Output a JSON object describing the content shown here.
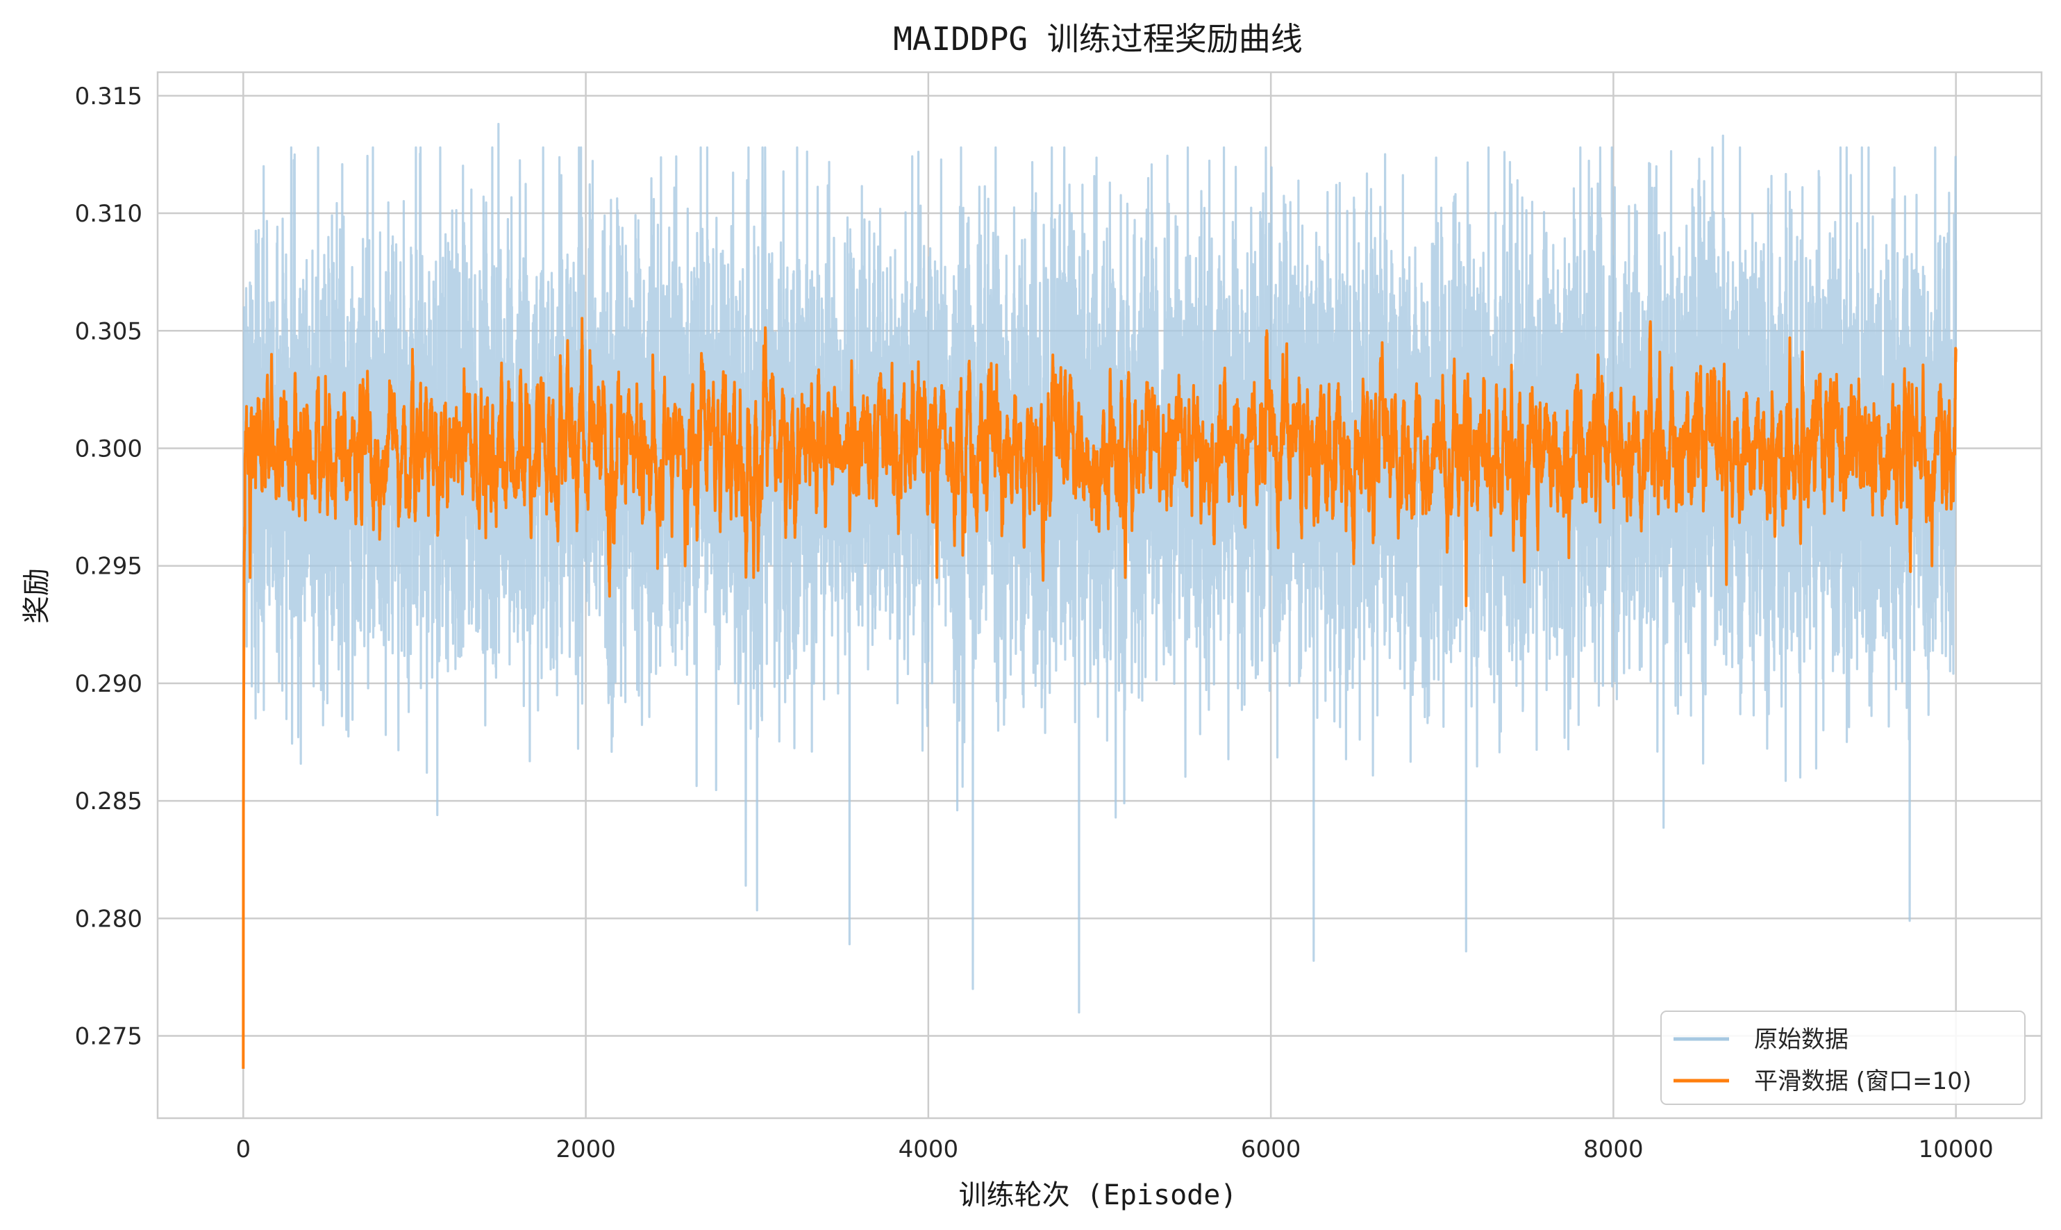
{
  "chart_data": {
    "type": "line",
    "title": "MAIDDPG 训练过程奖励曲线",
    "xlabel": "训练轮次 (Episode)",
    "ylabel": "奖励",
    "xlim": [
      -500,
      10500
    ],
    "ylim": [
      0.2715,
      0.316
    ],
    "x_ticks": [
      0,
      2000,
      4000,
      6000,
      8000,
      10000
    ],
    "x_tick_labels": [
      "0",
      "2000",
      "4000",
      "6000",
      "8000",
      "10000"
    ],
    "y_ticks": [
      0.275,
      0.28,
      0.285,
      0.29,
      0.295,
      0.3,
      0.305,
      0.31,
      0.315
    ],
    "y_tick_labels": [
      "0.275",
      "0.280",
      "0.285",
      "0.290",
      "0.295",
      "0.300",
      "0.305",
      "0.310",
      "0.315"
    ],
    "grid": true,
    "legend_position": "bottom-right",
    "series": [
      {
        "name": "原始数据",
        "color": "#a6c8e2",
        "x_range": [
          0,
          10000
        ],
        "summary": {
          "mean": 0.3,
          "min": 0.2736,
          "max": 0.3138,
          "typical_low": 0.29,
          "typical_high": 0.309
        },
        "notable_points": [
          {
            "x": 0,
            "y": 0.2736
          },
          {
            "x": 5,
            "y": 0.306
          },
          {
            "x": 300,
            "y": 0.3125
          },
          {
            "x": 1490,
            "y": 0.3138
          },
          {
            "x": 3540,
            "y": 0.2789
          },
          {
            "x": 4260,
            "y": 0.277
          },
          {
            "x": 4880,
            "y": 0.276
          },
          {
            "x": 6250,
            "y": 0.2782
          },
          {
            "x": 7140,
            "y": 0.2786
          },
          {
            "x": 8640,
            "y": 0.3133
          },
          {
            "x": 9730,
            "y": 0.2799
          },
          {
            "x": 10000,
            "y": 0.308
          }
        ]
      },
      {
        "name": "平滑数据 (窗口=10)",
        "color": "#ff7f0e",
        "x_range": [
          0,
          10000
        ],
        "summary": {
          "mean": 0.3,
          "min": 0.2933,
          "max": 0.3047,
          "typical_low": 0.2975,
          "typical_high": 0.3025
        },
        "notable_points": [
          {
            "x": 40,
            "y": 0.2945
          },
          {
            "x": 165,
            "y": 0.304
          },
          {
            "x": 2580,
            "y": 0.295
          },
          {
            "x": 2980,
            "y": 0.2945
          },
          {
            "x": 4050,
            "y": 0.2945
          },
          {
            "x": 5150,
            "y": 0.2945
          },
          {
            "x": 6070,
            "y": 0.304
          },
          {
            "x": 6650,
            "y": 0.3045
          },
          {
            "x": 7140,
            "y": 0.2933
          },
          {
            "x": 8660,
            "y": 0.2942
          },
          {
            "x": 9030,
            "y": 0.3047
          },
          {
            "x": 9860,
            "y": 0.295
          }
        ]
      }
    ]
  }
}
